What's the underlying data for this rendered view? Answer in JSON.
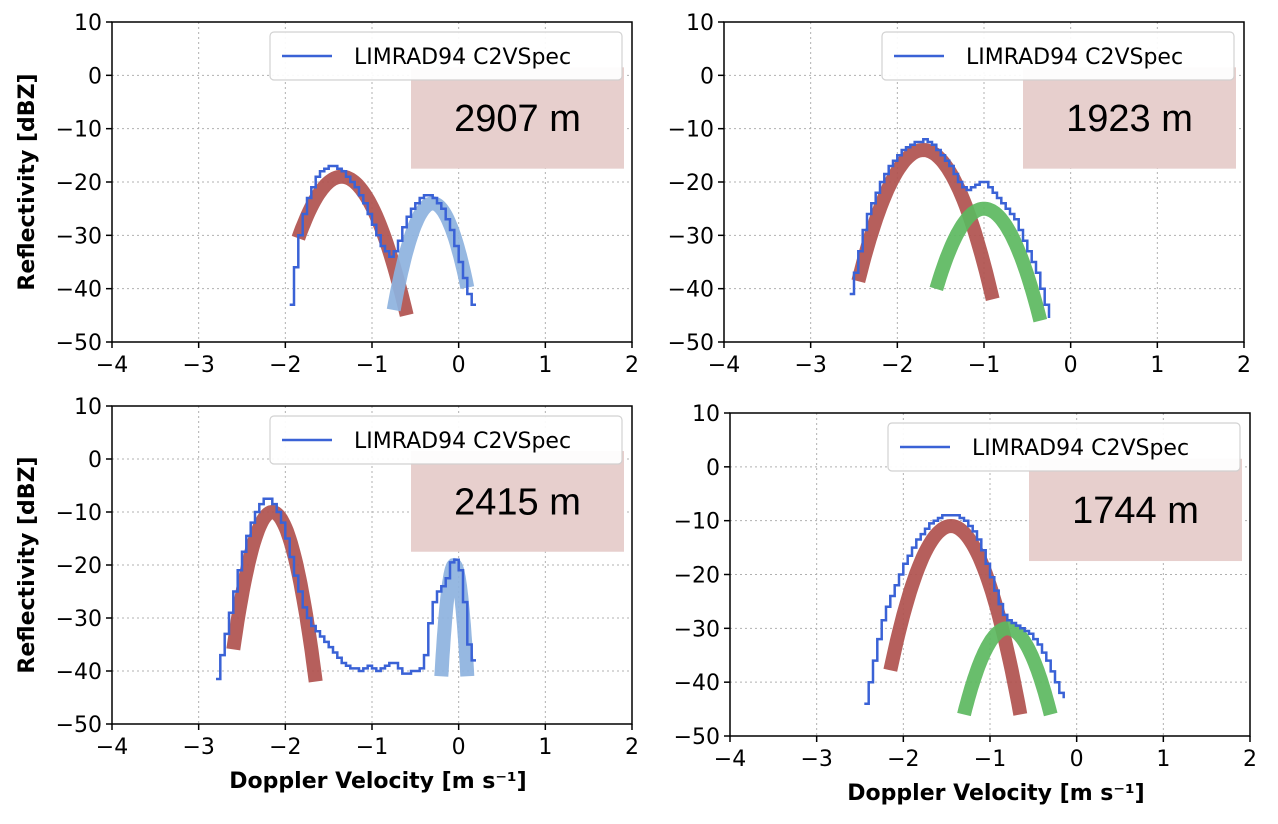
{
  "colors": {
    "spectrum": "#3a62d6",
    "mode_red": "#b0514e",
    "mode_blue": "#8db2de",
    "mode_green": "#5cb85f",
    "height_box": "#e7cfcd",
    "grid": "#b0b0b0"
  },
  "chart_data": [
    {
      "type": "line",
      "height_label": "2907 m",
      "legend": "LIMRAD94 C2VSpec",
      "legend_position": "upper-right",
      "ylabel": "Reflectivity [dBZ]",
      "xlabel": "",
      "xlim": [
        -4,
        2
      ],
      "ylim": [
        -50,
        10
      ],
      "xticks": [
        "−4",
        "−3",
        "−2",
        "−1",
        "0",
        "1",
        "2"
      ],
      "yticks": [
        "−50",
        "−40",
        "−30",
        "−20",
        "−10",
        "0",
        "10"
      ],
      "grid": true,
      "spectrum": {
        "name": "LIMRAD94 C2VSpec",
        "x": [
          -1.95,
          -1.9,
          -1.85,
          -1.8,
          -1.75,
          -1.7,
          -1.65,
          -1.6,
          -1.55,
          -1.5,
          -1.45,
          -1.4,
          -1.35,
          -1.3,
          -1.25,
          -1.2,
          -1.15,
          -1.1,
          -1.05,
          -1.0,
          -0.95,
          -0.9,
          -0.85,
          -0.8,
          -0.75,
          -0.7,
          -0.65,
          -0.6,
          -0.55,
          -0.5,
          -0.45,
          -0.4,
          -0.35,
          -0.3,
          -0.25,
          -0.2,
          -0.15,
          -0.1,
          -0.05,
          0.0,
          0.05,
          0.1,
          0.15,
          0.2
        ],
        "y": [
          -43,
          -36,
          -30,
          -26,
          -23,
          -21,
          -19,
          -18,
          -17.5,
          -17,
          -17,
          -17.5,
          -18,
          -19,
          -20,
          -21,
          -22.5,
          -24,
          -26,
          -28,
          -30,
          -32,
          -33,
          -34,
          -33,
          -31,
          -28.5,
          -26.5,
          -25,
          -24,
          -23,
          -22.5,
          -22.5,
          -23,
          -24,
          -25,
          -27,
          -29,
          -32,
          -35,
          -38,
          -41,
          -43,
          -43
        ]
      },
      "modes": [
        {
          "color": "red",
          "peak_x": -1.35,
          "peak_y": -19,
          "x_range": [
            -1.85,
            -0.6
          ],
          "min_y": -45
        },
        {
          "color": "blue",
          "peak_x": -0.3,
          "peak_y": -24,
          "x_range": [
            -0.75,
            0.1
          ],
          "min_y": -44
        }
      ]
    },
    {
      "type": "line",
      "height_label": "1923 m",
      "legend": "LIMRAD94 C2VSpec",
      "legend_position": "upper-right",
      "ylabel": "",
      "xlabel": "",
      "xlim": [
        -4,
        2
      ],
      "ylim": [
        -50,
        10
      ],
      "xticks": [
        "−4",
        "−3",
        "−2",
        "−1",
        "0",
        "1",
        "2"
      ],
      "yticks": [
        "−50",
        "−40",
        "−30",
        "−20",
        "−10",
        "0",
        "10"
      ],
      "grid": true,
      "spectrum": {
        "name": "LIMRAD94 C2VSpec",
        "x": [
          -2.55,
          -2.5,
          -2.45,
          -2.4,
          -2.35,
          -2.3,
          -2.25,
          -2.2,
          -2.15,
          -2.1,
          -2.05,
          -2.0,
          -1.95,
          -1.9,
          -1.85,
          -1.8,
          -1.75,
          -1.7,
          -1.65,
          -1.6,
          -1.55,
          -1.5,
          -1.45,
          -1.4,
          -1.35,
          -1.3,
          -1.25,
          -1.2,
          -1.15,
          -1.1,
          -1.05,
          -1.0,
          -0.95,
          -0.9,
          -0.85,
          -0.8,
          -0.75,
          -0.7,
          -0.65,
          -0.6,
          -0.55,
          -0.5,
          -0.45,
          -0.4,
          -0.35,
          -0.3,
          -0.25
        ],
        "y": [
          -41,
          -37,
          -33,
          -29,
          -26,
          -24,
          -22,
          -20,
          -18.5,
          -17,
          -16,
          -15,
          -14,
          -13.5,
          -13,
          -12.5,
          -12.5,
          -12,
          -12.5,
          -13,
          -14,
          -15,
          -16,
          -17,
          -18.5,
          -20,
          -21,
          -21.5,
          -21,
          -20.5,
          -20,
          -20,
          -21,
          -22,
          -23,
          -24,
          -25,
          -26,
          -27,
          -29,
          -31,
          -33,
          -35,
          -37,
          -40,
          -43,
          -45.5
        ]
      },
      "modes": [
        {
          "color": "red",
          "peak_x": -1.7,
          "peak_y": -14,
          "x_range": [
            -2.45,
            -0.9
          ],
          "min_y": -42
        },
        {
          "color": "green",
          "peak_x": -1.0,
          "peak_y": -25,
          "x_range": [
            -1.55,
            -0.35
          ],
          "min_y": -46
        }
      ]
    },
    {
      "type": "line",
      "height_label": "2415 m",
      "legend": "LIMRAD94 C2VSpec",
      "legend_position": "upper-right",
      "ylabel": "Reflectivity [dBZ]",
      "xlabel": "Doppler Velocity [m s⁻¹]",
      "xlim": [
        -4,
        2
      ],
      "ylim": [
        -50,
        10
      ],
      "xticks": [
        "−4",
        "−3",
        "−2",
        "−1",
        "0",
        "1",
        "2"
      ],
      "yticks": [
        "−50",
        "−40",
        "−30",
        "−20",
        "−10",
        "0",
        "10"
      ],
      "grid": true,
      "spectrum": {
        "name": "LIMRAD94 C2VSpec",
        "x": [
          -2.8,
          -2.75,
          -2.7,
          -2.65,
          -2.6,
          -2.55,
          -2.5,
          -2.45,
          -2.4,
          -2.35,
          -2.3,
          -2.25,
          -2.2,
          -2.15,
          -2.1,
          -2.05,
          -2.0,
          -1.95,
          -1.9,
          -1.85,
          -1.8,
          -1.75,
          -1.7,
          -1.65,
          -1.6,
          -1.55,
          -1.5,
          -1.45,
          -1.4,
          -1.35,
          -1.3,
          -1.25,
          -1.2,
          -1.15,
          -1.1,
          -1.05,
          -1.0,
          -0.95,
          -0.9,
          -0.85,
          -0.8,
          -0.75,
          -0.7,
          -0.65,
          -0.6,
          -0.55,
          -0.5,
          -0.45,
          -0.4,
          -0.35,
          -0.3,
          -0.25,
          -0.2,
          -0.15,
          -0.1,
          -0.05,
          0.0,
          0.05,
          0.1,
          0.15,
          0.2
        ],
        "y": [
          -41.5,
          -37,
          -33,
          -29,
          -25,
          -21,
          -17.5,
          -14.5,
          -12,
          -10,
          -8.5,
          -7.5,
          -7.5,
          -8.5,
          -10,
          -12,
          -15,
          -18.5,
          -22,
          -25,
          -28,
          -30,
          -31.5,
          -32.5,
          -33.5,
          -34.5,
          -35.5,
          -36.5,
          -37.5,
          -38.5,
          -39,
          -39.5,
          -39.5,
          -40,
          -39.5,
          -39,
          -39.5,
          -40,
          -39.5,
          -39,
          -38.5,
          -38.5,
          -39.5,
          -40.5,
          -40.5,
          -40,
          -40,
          -39.5,
          -37,
          -31,
          -27,
          -25,
          -24,
          -22.5,
          -19.5,
          -19,
          -21,
          -27,
          -35,
          -38,
          -38
        ]
      },
      "modes": [
        {
          "color": "red",
          "peak_x": -2.15,
          "peak_y": -10,
          "x_range": [
            -2.6,
            -1.65
          ],
          "min_y": -42
        },
        {
          "color": "blue",
          "peak_x": -0.05,
          "peak_y": -20,
          "x_range": [
            -0.2,
            0.1
          ],
          "min_y": -41
        }
      ]
    },
    {
      "type": "line",
      "height_label": "1744 m",
      "legend": "LIMRAD94 C2VSpec",
      "legend_position": "upper-right",
      "ylabel": "",
      "xlabel": "Doppler Velocity [m s⁻¹]",
      "xlim": [
        -4,
        2
      ],
      "ylim": [
        -50,
        10
      ],
      "xticks": [
        "−4",
        "−3",
        "−2",
        "−1",
        "0",
        "1",
        "2"
      ],
      "yticks": [
        "−50",
        "−40",
        "−30",
        "−20",
        "−10",
        "0",
        "10"
      ],
      "grid": true,
      "spectrum": {
        "name": "LIMRAD94 C2VSpec",
        "x": [
          -2.45,
          -2.4,
          -2.35,
          -2.3,
          -2.25,
          -2.2,
          -2.15,
          -2.1,
          -2.05,
          -2.0,
          -1.95,
          -1.9,
          -1.85,
          -1.8,
          -1.75,
          -1.7,
          -1.65,
          -1.6,
          -1.55,
          -1.5,
          -1.45,
          -1.4,
          -1.35,
          -1.3,
          -1.25,
          -1.2,
          -1.15,
          -1.1,
          -1.05,
          -1.0,
          -0.95,
          -0.9,
          -0.85,
          -0.8,
          -0.75,
          -0.7,
          -0.65,
          -0.6,
          -0.55,
          -0.5,
          -0.45,
          -0.4,
          -0.35,
          -0.3,
          -0.25,
          -0.2,
          -0.15
        ],
        "y": [
          -44,
          -40,
          -36,
          -32,
          -28.5,
          -26,
          -24,
          -22,
          -20,
          -18,
          -16.5,
          -15,
          -13.5,
          -12.5,
          -11.5,
          -10.5,
          -10,
          -9.5,
          -9,
          -9,
          -9,
          -9,
          -9.5,
          -10,
          -11,
          -12,
          -13.5,
          -15.5,
          -18,
          -20.5,
          -23,
          -25.5,
          -27.5,
          -28.5,
          -29,
          -29.5,
          -30,
          -30.5,
          -31,
          -32,
          -33,
          -34.5,
          -36,
          -38,
          -40,
          -42,
          -43
        ]
      },
      "modes": [
        {
          "color": "red",
          "peak_x": -1.45,
          "peak_y": -11,
          "x_range": [
            -2.15,
            -0.65
          ],
          "min_y": -46
        },
        {
          "color": "green",
          "peak_x": -0.8,
          "peak_y": -30,
          "x_range": [
            -1.3,
            -0.3
          ],
          "min_y": -46
        }
      ]
    }
  ]
}
